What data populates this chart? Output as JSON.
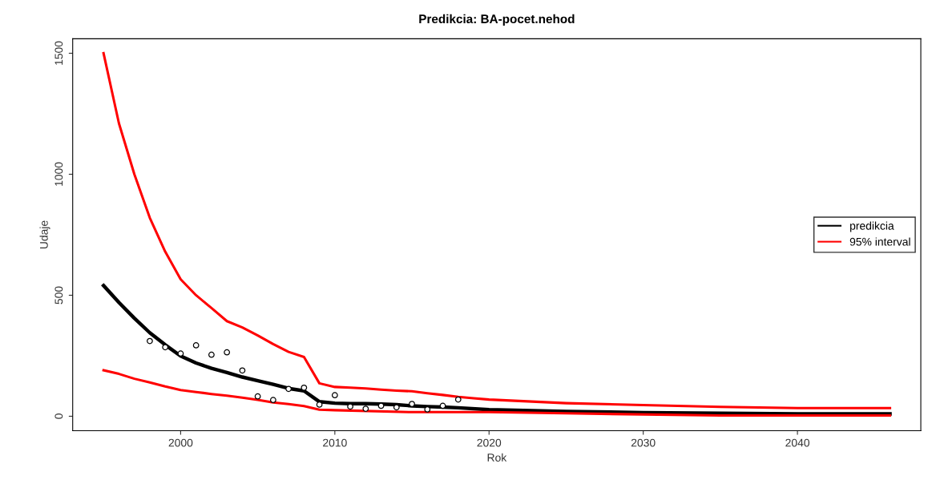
{
  "chart_data": {
    "type": "line",
    "title": "Predikcia: BA-pocet.nehod",
    "xlabel": "Rok",
    "ylabel": "Udaje",
    "xlim": [
      1993,
      2048
    ],
    "ylim": [
      -60,
      1560
    ],
    "xticks": [
      2000,
      2010,
      2020,
      2030,
      2040
    ],
    "yticks": [
      0,
      500,
      1000,
      1500
    ],
    "grid": false,
    "legend": "right",
    "marker": "none",
    "line_style": "solid",
    "series": [
      {
        "type": "scatter",
        "marker": "circle",
        "color": "#000000",
        "x": [
          1998,
          1999,
          2000,
          2001,
          2002,
          2003,
          2004,
          2005,
          2006,
          2007,
          2008,
          2009,
          2010,
          2011,
          2012,
          2013,
          2014,
          2015,
          2016,
          2017,
          2018
        ],
        "values": [
          311,
          285,
          259,
          293,
          254,
          264,
          189,
          82,
          67,
          113,
          118,
          48,
          87,
          40,
          31,
          43,
          37,
          51,
          28,
          43,
          69
        ]
      },
      {
        "name": "predikcia",
        "color": "#000000",
        "x": [
          1995,
          1996,
          1997,
          1998,
          1999,
          2000,
          2001,
          2002,
          2003,
          2004,
          2005,
          2006,
          2007,
          2008,
          2009,
          2010,
          2011,
          2012,
          2013,
          2014,
          2015,
          2016,
          2017,
          2018,
          2020,
          2025,
          2030,
          2035,
          2040,
          2046
        ],
        "values": [
          540,
          470,
          405,
          345,
          295,
          249,
          220,
          198,
          181,
          162,
          147,
          132,
          115,
          105,
          60,
          54,
          52,
          52,
          50,
          48,
          43,
          40,
          38,
          35,
          27,
          20,
          15,
          12,
          10,
          10
        ]
      },
      {
        "name": "95% interval",
        "color": "#ff0000",
        "x": [
          1995,
          1996,
          1997,
          1998,
          1999,
          2000,
          2001,
          2002,
          2003,
          2004,
          2005,
          2006,
          2007,
          2008,
          2009,
          2010,
          2011,
          2012,
          2013,
          2014,
          2015,
          2016,
          2017,
          2018,
          2019,
          2020,
          2025,
          2030,
          2035,
          2040,
          2046
        ],
        "values": [
          1500,
          1210,
          1000,
          820,
          680,
          566,
          500,
          447,
          393,
          367,
          334,
          298,
          266,
          245,
          136,
          121,
          118,
          115,
          110,
          106,
          103,
          95,
          88,
          80,
          74,
          69,
          54,
          46,
          39,
          34,
          34
        ]
      },
      {
        "color": "#ff0000",
        "x": [
          1995,
          1996,
          1997,
          1998,
          1999,
          2000,
          2001,
          2002,
          2003,
          2004,
          2005,
          2006,
          2007,
          2008,
          2009,
          2010,
          2015,
          2020,
          2025,
          2035,
          2046
        ],
        "values": [
          190,
          175,
          155,
          140,
          123,
          108,
          100,
          92,
          85,
          77,
          68,
          57,
          50,
          42,
          27,
          25,
          17,
          17,
          12,
          3,
          3
        ]
      }
    ]
  }
}
